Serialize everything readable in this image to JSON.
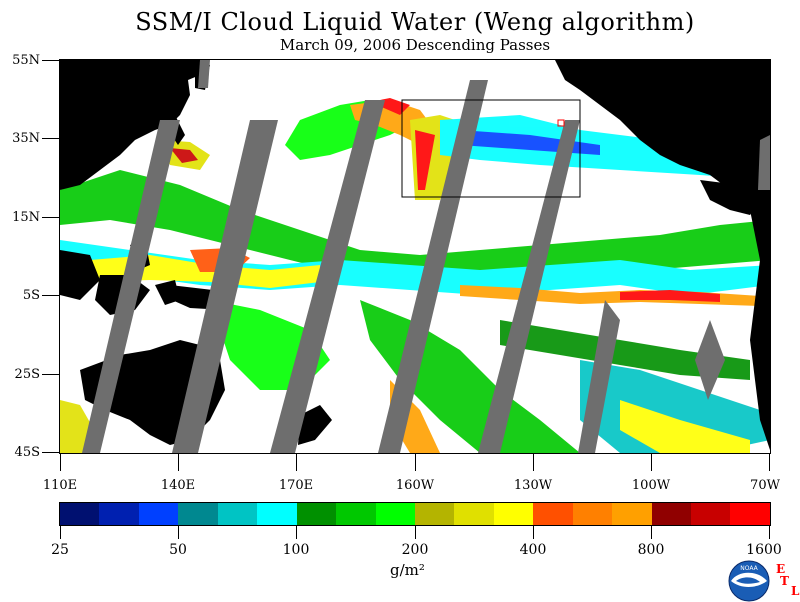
{
  "header": {
    "title": "SSM/I Cloud Liquid Water (Weng algorithm)",
    "subtitle": "March 09, 2006  Descending Passes"
  },
  "map": {
    "y_labels": [
      "55N",
      "35N",
      "15N",
      "5S",
      "25S",
      "45S"
    ],
    "x_labels": [
      "110E",
      "140E",
      "170E",
      "160W",
      "130W",
      "100W",
      "70W"
    ],
    "land_color": "#000000",
    "no_data_color": "#6e6e6e",
    "clear_color": "#ffffff"
  },
  "colorbar": {
    "colors": [
      "#001070",
      "#0020b0",
      "#0040ff",
      "#008890",
      "#00c4c4",
      "#00ffff",
      "#009000",
      "#00c800",
      "#00ff00",
      "#b4b400",
      "#e0e000",
      "#ffff00",
      "#ff5000",
      "#ff8000",
      "#ffa000",
      "#900000",
      "#c80000",
      "#ff0000"
    ],
    "tick_labels": [
      "25",
      "50",
      "100",
      "200",
      "400",
      "800",
      "1600"
    ],
    "units": "g/m²"
  },
  "logo": {
    "noaa_text": "NOAA",
    "etl_letters": [
      "E",
      "T",
      "L"
    ]
  }
}
